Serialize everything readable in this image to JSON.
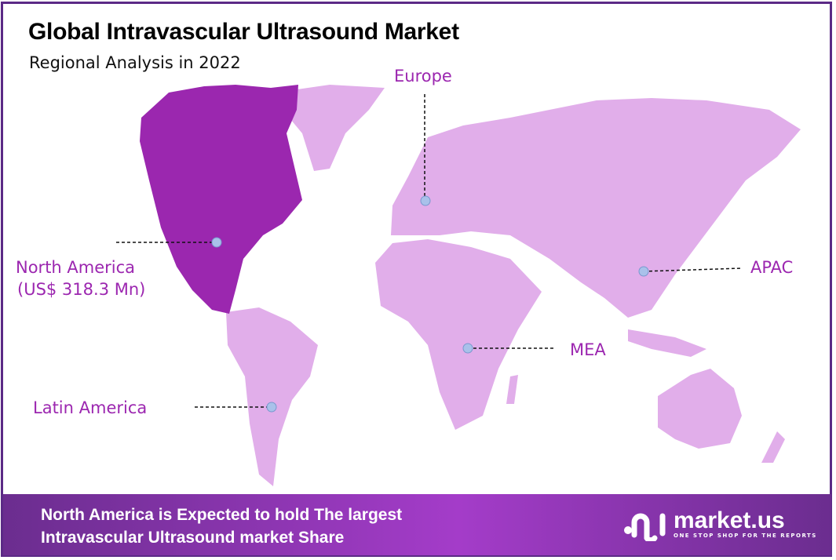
{
  "header": {
    "title": "Global Intravascular Ultrasound Market",
    "subtitle": "Regional Analysis in 2022"
  },
  "colors": {
    "highlight_region": "#9b27af",
    "other_regions": "#e1aeea",
    "label": "#9c27b0",
    "marker": "#a9c1ea",
    "border": "#5b2a86"
  },
  "regions": [
    {
      "id": "north-america",
      "label": "North America",
      "value": "(US$ 318.3 Mn)",
      "highlighted": true
    },
    {
      "id": "europe",
      "label": "Europe",
      "highlighted": false
    },
    {
      "id": "apac",
      "label": "APAC",
      "highlighted": false
    },
    {
      "id": "mea",
      "label": "MEA",
      "highlighted": false
    },
    {
      "id": "latin-america",
      "label": "Latin America",
      "highlighted": false
    }
  ],
  "footer": {
    "line1": "North America is Expected to hold The largest",
    "line2": "Intravascular Ultrasound market Share"
  },
  "logo": {
    "name": "market.us",
    "tagline": "ONE STOP SHOP FOR THE REPORTS"
  }
}
